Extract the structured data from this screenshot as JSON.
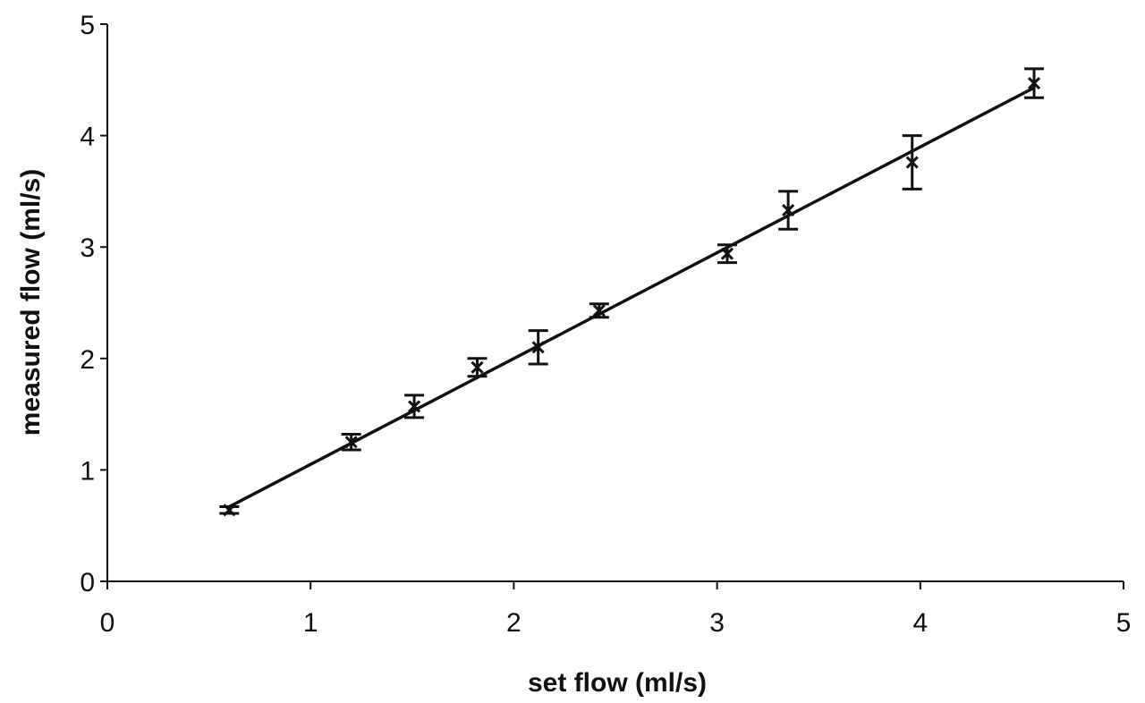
{
  "chart_data": {
    "type": "scatter",
    "title": "",
    "xlabel": "set flow (ml/s)",
    "ylabel": "measured flow (ml/s)",
    "xlim": [
      0,
      5
    ],
    "ylim": [
      0,
      5
    ],
    "xticks": [
      0,
      1,
      2,
      3,
      4,
      5
    ],
    "yticks": [
      0,
      1,
      2,
      3,
      4,
      5
    ],
    "grid": false,
    "legend": "none",
    "marker": "x",
    "points": [
      {
        "x": 0.6,
        "y": 0.64,
        "err": 0.03
      },
      {
        "x": 1.2,
        "y": 1.25,
        "err": 0.07
      },
      {
        "x": 1.51,
        "y": 1.57,
        "err": 0.1
      },
      {
        "x": 1.82,
        "y": 1.92,
        "err": 0.08
      },
      {
        "x": 2.12,
        "y": 2.1,
        "err": 0.15
      },
      {
        "x": 2.42,
        "y": 2.43,
        "err": 0.06
      },
      {
        "x": 3.05,
        "y": 2.94,
        "err": 0.08
      },
      {
        "x": 3.35,
        "y": 3.33,
        "err": 0.17
      },
      {
        "x": 3.96,
        "y": 3.76,
        "err": 0.24
      },
      {
        "x": 4.56,
        "y": 4.47,
        "err": 0.13
      }
    ],
    "trendline": {
      "x": [
        0.6,
        4.56
      ],
      "y": [
        0.67,
        4.43
      ]
    }
  }
}
